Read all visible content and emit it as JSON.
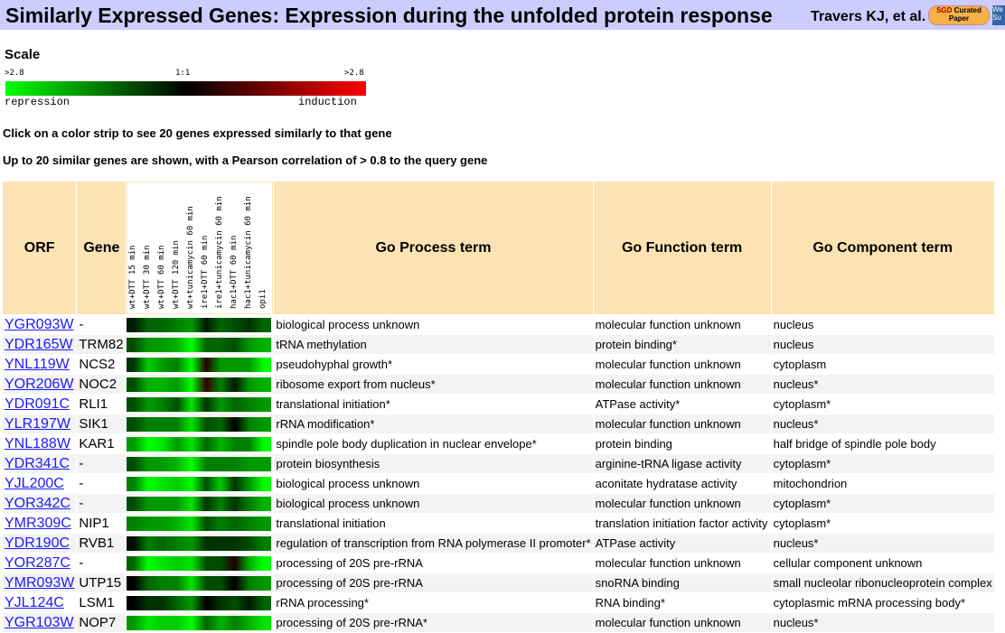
{
  "header": {
    "title": "Similarly Expressed Genes: Expression during the unfolded protein response",
    "author": "Travers KJ, et al.",
    "badge": "SGD Curated Paper",
    "side": "We Su"
  },
  "scale": {
    "heading": "Scale",
    "left": ">2.8",
    "mid": "1:1",
    "right": ">2.8",
    "low_label": "repression",
    "high_label": "induction"
  },
  "notes": [
    "Click on a color strip to see 20 genes expressed similarly to that gene",
    "Up to 20 similar genes are shown, with a Pearson correlation of > 0.8 to the query gene"
  ],
  "columns": {
    "orf": "ORF",
    "gene": "Gene",
    "process": "Go Process term",
    "function": "Go Function term",
    "component": "Go Component term",
    "conditions": [
      "wt+DTT 15 min",
      "wt+DTT 30 min",
      "wt+DTT 60 min",
      "wt+DTT 120 min",
      "wt+tunicamycin 60 min",
      "ire1+DTT 60 min",
      "ire1+tunicamycin 60 min",
      "hac1+DTT 60 min",
      "hac1+tunicamycin 60 min",
      "opi1"
    ]
  },
  "rows": [
    {
      "orf": "YGR093W",
      "gene": "-",
      "process": "biological process unknown",
      "function": "molecular function unknown",
      "component": "nucleus",
      "expr": [
        -0.1,
        -0.4,
        -0.4,
        -0.5,
        -0.6,
        -0.1,
        -0.4,
        -0.3,
        -0.2,
        -0.4
      ]
    },
    {
      "orf": "YDR165W",
      "gene": "TRM82",
      "process": "tRNA methylation",
      "function": "protein binding*",
      "component": "nucleus",
      "expr": [
        -0.3,
        -0.6,
        -0.6,
        -0.7,
        -1.0,
        -0.4,
        -0.4,
        -0.3,
        -0.6,
        -0.7
      ]
    },
    {
      "orf": "YNL119W",
      "gene": "NCS2",
      "process": "pseudohyphal growth*",
      "function": "molecular function unknown",
      "component": "cytoplasm",
      "expr": [
        -0.2,
        -0.8,
        -0.6,
        -0.5,
        -1.0,
        0.15,
        -0.6,
        -0.6,
        -0.6,
        -1.0
      ]
    },
    {
      "orf": "YOR206W",
      "gene": "NOC2",
      "process": "ribosome export from nucleus*",
      "function": "molecular function unknown",
      "component": "nucleus*",
      "expr": [
        -0.3,
        -0.7,
        -0.7,
        -0.6,
        -1.0,
        0.2,
        -0.5,
        -0.1,
        -0.6,
        -0.7
      ]
    },
    {
      "orf": "YDR091C",
      "gene": "RLI1",
      "process": "translational initiation*",
      "function": "ATPase activity*",
      "component": "cytoplasm*",
      "expr": [
        -0.3,
        -0.6,
        -0.5,
        -0.3,
        -0.9,
        -0.2,
        -0.6,
        -0.4,
        -0.5,
        -0.6
      ]
    },
    {
      "orf": "YLR197W",
      "gene": "SIK1",
      "process": "rRNA modification*",
      "function": "molecular function unknown",
      "component": "nucleus*",
      "expr": [
        -0.3,
        -0.5,
        -0.5,
        -0.5,
        -0.9,
        -0.3,
        -0.4,
        0,
        -0.5,
        -0.6
      ]
    },
    {
      "orf": "YNL188W",
      "gene": "KAR1",
      "process": "spindle pole body duplication in nuclear envelope*",
      "function": "protein binding",
      "component": "half bridge of spindle pole body",
      "expr": [
        -0.6,
        -1.0,
        -0.9,
        -0.6,
        -0.9,
        -0.4,
        -0.7,
        -0.5,
        -0.5,
        -1.0
      ]
    },
    {
      "orf": "YDR341C",
      "gene": "-",
      "process": "protein biosynthesis",
      "function": "arginine-tRNA ligase activity",
      "component": "cytoplasm*",
      "expr": [
        -0.3,
        -0.6,
        -0.6,
        -0.7,
        -1.0,
        -0.5,
        -0.5,
        -0.5,
        -0.6,
        -0.6
      ]
    },
    {
      "orf": "YJL200C",
      "gene": "-",
      "process": "biological process unknown",
      "function": "aconitate hydratase activity",
      "component": "mitochondrion",
      "expr": [
        -0.5,
        -1.0,
        -0.9,
        -0.8,
        -1.0,
        -0.3,
        -0.8,
        -0.2,
        -0.6,
        -1.0
      ]
    },
    {
      "orf": "YOR342C",
      "gene": "-",
      "process": "biological process unknown",
      "function": "molecular function unknown",
      "component": "cytoplasm*",
      "expr": [
        -0.3,
        -0.6,
        -0.6,
        -0.6,
        -0.9,
        -0.2,
        -0.5,
        -0.2,
        -0.5,
        -0.7
      ]
    },
    {
      "orf": "YMR309C",
      "gene": "NIP1",
      "process": "translational initiation",
      "function": "translation initiation factor activity",
      "component": "cytoplasm*",
      "expr": [
        -0.5,
        -0.6,
        -0.6,
        -0.7,
        -0.9,
        -0.3,
        -0.5,
        -0.4,
        -0.5,
        -0.6
      ]
    },
    {
      "orf": "YDR190C",
      "gene": "RVB1",
      "process": "regulation of transcription from RNA polymerase II promoter*",
      "function": "ATPase activity",
      "component": "nucleus*",
      "expr": [
        -0.05,
        -0.5,
        -0.4,
        -0.5,
        -0.6,
        -0.2,
        -0.2,
        -0.2,
        -0.3,
        -0.5
      ]
    },
    {
      "orf": "YOR287C",
      "gene": "-",
      "process": "processing of 20S pre-rRNA",
      "function": "molecular function unknown",
      "component": "cellular component unknown",
      "expr": [
        -0.4,
        -1.0,
        -0.9,
        -0.8,
        -0.9,
        -0.3,
        -0.3,
        0.1,
        -0.7,
        -1.0
      ]
    },
    {
      "orf": "YMR093W",
      "gene": "UTP15",
      "process": "processing of 20S pre-rRNA",
      "function": "snoRNA binding",
      "component": "small nucleolar ribonucleoprotein complex",
      "expr": [
        0,
        -0.4,
        -0.5,
        -0.5,
        -0.9,
        -0.3,
        -0.3,
        0,
        -0.5,
        -0.6
      ]
    },
    {
      "orf": "YJL124C",
      "gene": "LSM1",
      "process": "rRNA processing*",
      "function": "RNA binding*",
      "component": "cytoplasmic mRNA processing body*",
      "expr": [
        0,
        -0.2,
        -0.2,
        -0.4,
        -0.6,
        0,
        -0.2,
        -0.3,
        -0.1,
        -0.4
      ]
    },
    {
      "orf": "YGR103W",
      "gene": "NOP7",
      "process": "processing of 20S pre-rRNA*",
      "function": "molecular function unknown",
      "component": "nucleus*",
      "expr": [
        -0.6,
        -0.9,
        -0.8,
        -0.8,
        -1.0,
        -0.4,
        -0.7,
        -0.5,
        -0.7,
        -0.9
      ]
    }
  ]
}
